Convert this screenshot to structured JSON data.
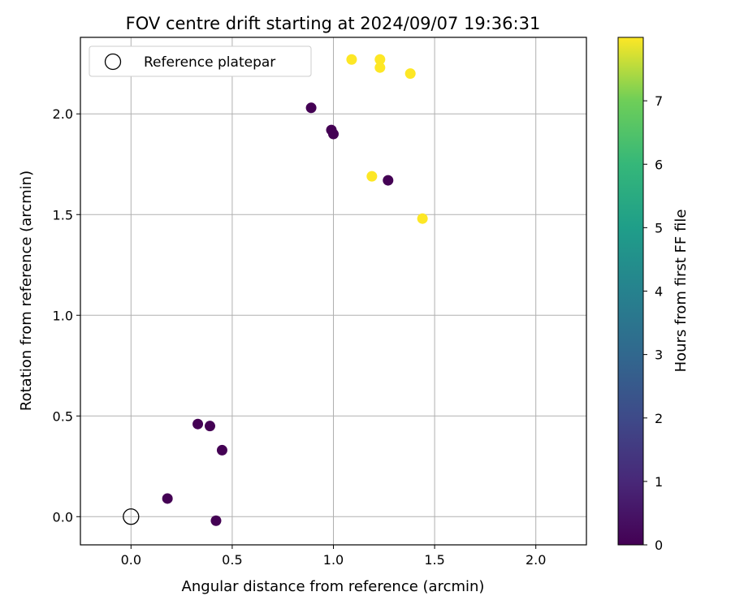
{
  "chart_data": {
    "type": "scatter",
    "title": "FOV centre drift starting at 2024/09/07 19:36:31",
    "xlabel": "Angular distance from reference (arcmin)",
    "ylabel": "Rotation from reference (arcmin)",
    "xlim": [
      -0.25,
      2.25
    ],
    "ylim": [
      -0.14,
      2.38
    ],
    "xticks": [
      0.0,
      0.5,
      1.0,
      1.5,
      2.0
    ],
    "xtick_labels": [
      "0.0",
      "0.5",
      "1.0",
      "1.5",
      "2.0"
    ],
    "yticks": [
      0.0,
      0.5,
      1.0,
      1.5,
      2.0
    ],
    "ytick_labels": [
      "0.0",
      "0.5",
      "1.0",
      "1.5",
      "2.0"
    ],
    "grid": true,
    "legend": {
      "placement": "top-left",
      "entries": [
        "Reference platepar"
      ]
    },
    "reference_point": {
      "x": 0.0,
      "y": 0.0
    },
    "colorbar": {
      "label": "Hours from first FF file",
      "range": [
        0,
        8
      ],
      "ticks": [
        0,
        1,
        2,
        3,
        4,
        5,
        6,
        7
      ],
      "tick_labels": [
        "0",
        "1",
        "2",
        "3",
        "4",
        "5",
        "6",
        "7"
      ],
      "colormap": "viridis"
    },
    "points": [
      {
        "x": 0.18,
        "y": 0.09,
        "c": 0.0
      },
      {
        "x": 0.42,
        "y": -0.02,
        "c": 0.0
      },
      {
        "x": 0.33,
        "y": 0.46,
        "c": 0.0
      },
      {
        "x": 0.39,
        "y": 0.45,
        "c": 0.0
      },
      {
        "x": 0.45,
        "y": 0.33,
        "c": 0.0
      },
      {
        "x": 0.89,
        "y": 2.03,
        "c": 0.0
      },
      {
        "x": 0.99,
        "y": 1.92,
        "c": 0.0
      },
      {
        "x": 1.0,
        "y": 1.9,
        "c": 0.0
      },
      {
        "x": 1.27,
        "y": 1.67,
        "c": 0.0
      },
      {
        "x": 1.09,
        "y": 2.27,
        "c": 8.0
      },
      {
        "x": 1.23,
        "y": 2.27,
        "c": 8.0
      },
      {
        "x": 1.23,
        "y": 2.23,
        "c": 8.0
      },
      {
        "x": 1.38,
        "y": 2.2,
        "c": 8.0
      },
      {
        "x": 1.19,
        "y": 1.69,
        "c": 8.0
      },
      {
        "x": 1.44,
        "y": 1.48,
        "c": 8.0
      }
    ]
  }
}
